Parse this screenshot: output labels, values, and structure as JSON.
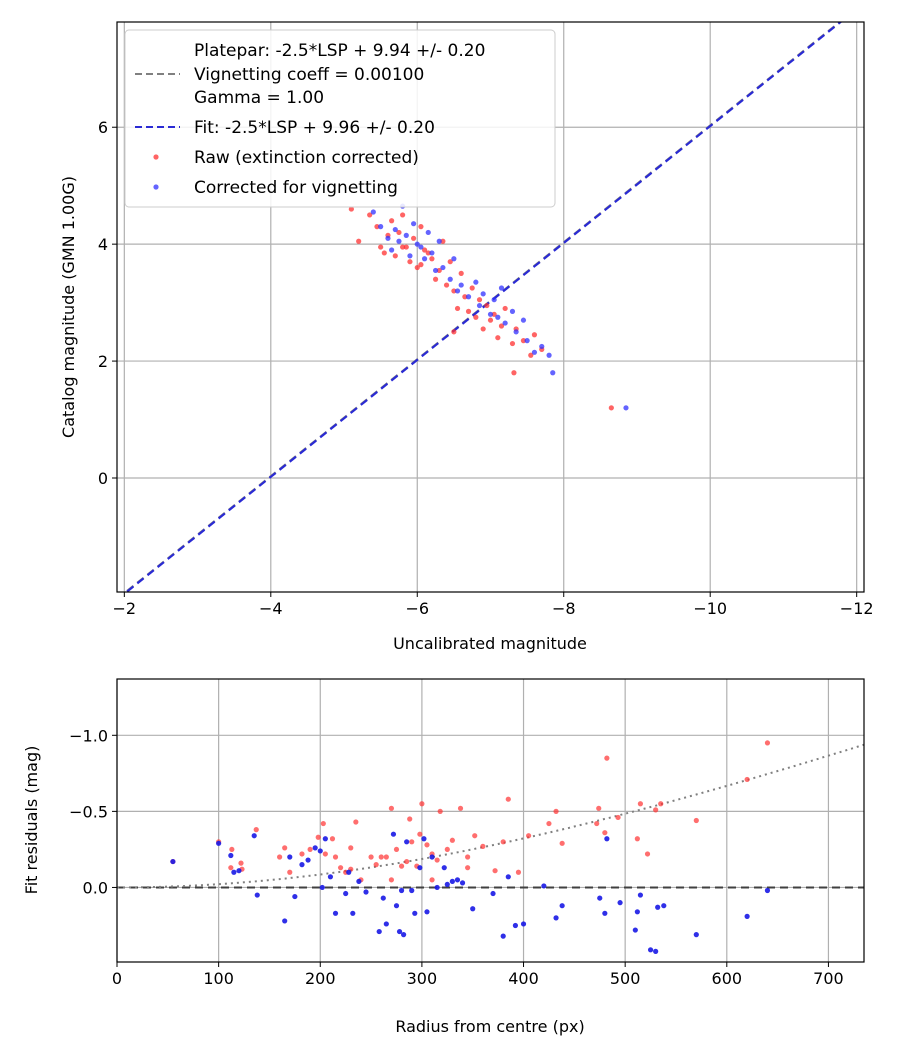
{
  "chart_data": [
    {
      "type": "scatter",
      "xlabel": "Uncalibrated magnitude",
      "ylabel": "Catalog magnitude (GMN 1.00G)",
      "xlim": [
        -1.9,
        -12.1
      ],
      "ylim": [
        7.8,
        -1.95
      ],
      "xticks": [
        -2,
        -4,
        -6,
        -8,
        -10,
        -12
      ],
      "xtick_labels": [
        "−2",
        "−4",
        "−6",
        "−8",
        "−10",
        "−12"
      ],
      "yticks": [
        0,
        2,
        4,
        6
      ],
      "ytick_labels": [
        "0",
        "2",
        "4",
        "6"
      ],
      "grid": true,
      "legend_position": "top-left",
      "legend": [
        {
          "label": "Platepar: -2.5*LSP + 9.94 +/- 0.20",
          "style": "none"
        },
        {
          "label": "Vignetting coeff = 0.00100",
          "style": "dashed",
          "color": "#808080"
        },
        {
          "label": "Gamma = 1.00",
          "style": "none"
        },
        {
          "label": "Fit: -2.5*LSP + 9.96 +/- 0.20",
          "style": "dashed",
          "color": "#2a2ad4"
        },
        {
          "label": "Raw (extinction corrected)",
          "style": "marker",
          "color": "#ff3030"
        },
        {
          "label": "Corrected for vignetting",
          "style": "marker",
          "color": "#3030ff"
        }
      ],
      "lines": [
        {
          "name": "Platepar",
          "slope": -1,
          "intercept": -3.97,
          "color": "#808080",
          "dash": "dashed"
        },
        {
          "name": "Fit",
          "slope": -1,
          "intercept": -3.98,
          "color": "#2a2ad4",
          "dash": "dashed"
        }
      ],
      "series": [
        {
          "name": "Raw (extinction corrected)",
          "color": "#ff3030",
          "points": [
            [
              -5.1,
              4.6
            ],
            [
              -5.2,
              4.05
            ],
            [
              -5.35,
              4.5
            ],
            [
              -5.45,
              4.3
            ],
            [
              -5.5,
              3.95
            ],
            [
              -5.55,
              3.85
            ],
            [
              -5.6,
              4.15
            ],
            [
              -5.65,
              4.4
            ],
            [
              -5.7,
              3.8
            ],
            [
              -5.75,
              4.2
            ],
            [
              -5.8,
              4.5
            ],
            [
              -5.85,
              3.95
            ],
            [
              -5.9,
              3.7
            ],
            [
              -5.95,
              4.1
            ],
            [
              -6.0,
              3.6
            ],
            [
              -6.05,
              4.3
            ],
            [
              -6.1,
              3.9
            ],
            [
              -6.2,
              3.75
            ],
            [
              -6.25,
              3.4
            ],
            [
              -6.3,
              3.55
            ],
            [
              -6.35,
              4.05
            ],
            [
              -6.4,
              3.3
            ],
            [
              -6.45,
              3.7
            ],
            [
              -6.5,
              3.2
            ],
            [
              -6.55,
              2.9
            ],
            [
              -6.6,
              3.5
            ],
            [
              -6.65,
              3.1
            ],
            [
              -6.7,
              2.85
            ],
            [
              -6.75,
              3.25
            ],
            [
              -6.8,
              2.75
            ],
            [
              -6.85,
              3.05
            ],
            [
              -6.9,
              2.55
            ],
            [
              -6.95,
              2.95
            ],
            [
              -7.0,
              2.7
            ],
            [
              -7.05,
              2.8
            ],
            [
              -7.1,
              2.4
            ],
            [
              -7.15,
              2.6
            ],
            [
              -7.2,
              2.9
            ],
            [
              -7.3,
              2.3
            ],
            [
              -7.35,
              2.55
            ],
            [
              -7.32,
              1.8
            ],
            [
              -7.45,
              2.35
            ],
            [
              -7.55,
              2.1
            ],
            [
              -7.6,
              2.45
            ],
            [
              -7.7,
              2.2
            ],
            [
              -8.65,
              1.2
            ],
            [
              -6.5,
              2.5
            ],
            [
              -6.05,
              3.65
            ],
            [
              -5.8,
              3.95
            ],
            [
              -6.15,
              3.85
            ]
          ]
        },
        {
          "name": "Corrected for vignetting",
          "color": "#3030ff",
          "points": [
            [
              -5.4,
              4.55
            ],
            [
              -5.5,
              4.3
            ],
            [
              -5.6,
              4.1
            ],
            [
              -5.65,
              3.9
            ],
            [
              -5.7,
              4.25
            ],
            [
              -5.75,
              4.05
            ],
            [
              -5.8,
              4.65
            ],
            [
              -5.85,
              4.15
            ],
            [
              -5.9,
              3.8
            ],
            [
              -5.95,
              4.35
            ],
            [
              -6.0,
              4.0
            ],
            [
              -6.05,
              3.95
            ],
            [
              -6.1,
              3.75
            ],
            [
              -6.15,
              4.2
            ],
            [
              -6.2,
              3.85
            ],
            [
              -6.25,
              3.55
            ],
            [
              -6.3,
              4.05
            ],
            [
              -6.35,
              3.6
            ],
            [
              -6.45,
              3.4
            ],
            [
              -6.5,
              3.75
            ],
            [
              -6.55,
              3.2
            ],
            [
              -6.6,
              3.3
            ],
            [
              -6.7,
              3.1
            ],
            [
              -6.8,
              3.35
            ],
            [
              -6.85,
              2.95
            ],
            [
              -6.9,
              3.15
            ],
            [
              -7.0,
              2.8
            ],
            [
              -7.05,
              3.05
            ],
            [
              -7.1,
              2.75
            ],
            [
              -7.15,
              3.25
            ],
            [
              -7.2,
              2.65
            ],
            [
              -7.3,
              2.85
            ],
            [
              -7.35,
              2.5
            ],
            [
              -7.45,
              2.7
            ],
            [
              -7.5,
              2.35
            ],
            [
              -7.6,
              2.15
            ],
            [
              -7.7,
              2.25
            ],
            [
              -7.8,
              2.1
            ],
            [
              -7.85,
              1.8
            ],
            [
              -8.85,
              1.2
            ]
          ]
        }
      ]
    },
    {
      "type": "scatter",
      "xlabel": "Radius from centre (px)",
      "ylabel": "Fit residuals (mag)",
      "xlim": [
        0,
        735
      ],
      "ylim": [
        -1.37,
        0.49
      ],
      "xticks": [
        0,
        100,
        200,
        300,
        400,
        500,
        600,
        700
      ],
      "xtick_labels": [
        "0",
        "100",
        "200",
        "300",
        "400",
        "500",
        "600",
        "700"
      ],
      "yticks": [
        0.0,
        -0.5,
        -1.0
      ],
      "ytick_labels": [
        "0.0",
        "−0.5",
        "−1.0"
      ],
      "grid": true,
      "lines": [
        {
          "name": "zero",
          "value": 0,
          "color": "#404040",
          "dash": "dashed"
        },
        {
          "name": "vignetting model",
          "coeff": 0.001,
          "color": "#808080",
          "dash": "dotted"
        }
      ],
      "series": [
        {
          "name": "Raw (extinction corrected)",
          "color": "#ff3030",
          "points": [
            [
              55,
              -0.17
            ],
            [
              100,
              -0.3
            ],
            [
              112,
              -0.13
            ],
            [
              113,
              -0.25
            ],
            [
              122,
              -0.16
            ],
            [
              123,
              -0.12
            ],
            [
              137,
              -0.38
            ],
            [
              165,
              -0.26
            ],
            [
              170,
              -0.1
            ],
            [
              182,
              -0.22
            ],
            [
              190,
              -0.25
            ],
            [
              198,
              -0.33
            ],
            [
              203,
              -0.42
            ],
            [
              205,
              -0.22
            ],
            [
              212,
              -0.32
            ],
            [
              215,
              -0.2
            ],
            [
              220,
              -0.13
            ],
            [
              225,
              -0.1
            ],
            [
              230,
              -0.26
            ],
            [
              235,
              -0.43
            ],
            [
              240,
              -0.05
            ],
            [
              255,
              -0.15
            ],
            [
              260,
              -0.2
            ],
            [
              265,
              -0.2
            ],
            [
              270,
              -0.52
            ],
            [
              275,
              -0.25
            ],
            [
              280,
              -0.14
            ],
            [
              285,
              -0.17
            ],
            [
              288,
              -0.45
            ],
            [
              290,
              -0.3
            ],
            [
              295,
              -0.14
            ],
            [
              298,
              -0.35
            ],
            [
              300,
              -0.55
            ],
            [
              305,
              -0.28
            ],
            [
              310,
              -0.22
            ],
            [
              315,
              -0.18
            ],
            [
              318,
              -0.5
            ],
            [
              325,
              -0.25
            ],
            [
              330,
              -0.31
            ],
            [
              338,
              -0.52
            ],
            [
              345,
              -0.2
            ],
            [
              352,
              -0.34
            ],
            [
              360,
              -0.27
            ],
            [
              372,
              -0.11
            ],
            [
              380,
              -0.3
            ],
            [
              385,
              -0.58
            ],
            [
              395,
              -0.1
            ],
            [
              405,
              -0.34
            ],
            [
              425,
              -0.42
            ],
            [
              432,
              -0.5
            ],
            [
              438,
              -0.29
            ],
            [
              472,
              -0.42
            ],
            [
              474,
              -0.52
            ],
            [
              480,
              -0.36
            ],
            [
              482,
              -0.85
            ],
            [
              493,
              -0.46
            ],
            [
              512,
              -0.32
            ],
            [
              515,
              -0.55
            ],
            [
              522,
              -0.22
            ],
            [
              530,
              -0.51
            ],
            [
              535,
              -0.55
            ],
            [
              570,
              -0.44
            ],
            [
              620,
              -0.71
            ],
            [
              640,
              -0.95
            ],
            [
              270,
              -0.05
            ],
            [
              250,
              -0.2
            ],
            [
              230,
              -0.12
            ],
            [
              160,
              -0.2
            ],
            [
              310,
              -0.05
            ],
            [
              345,
              -0.13
            ]
          ]
        },
        {
          "name": "Corrected for vignetting",
          "color": "#1818e6",
          "points": [
            [
              55,
              -0.17
            ],
            [
              100,
              -0.29
            ],
            [
              112,
              -0.21
            ],
            [
              115,
              -0.1
            ],
            [
              120,
              -0.11
            ],
            [
              135,
              -0.34
            ],
            [
              138,
              0.05
            ],
            [
              165,
              0.22
            ],
            [
              170,
              -0.2
            ],
            [
              175,
              0.06
            ],
            [
              182,
              -0.15
            ],
            [
              188,
              -0.18
            ],
            [
              195,
              -0.26
            ],
            [
              200,
              -0.24
            ],
            [
              202,
              0.0
            ],
            [
              205,
              -0.32
            ],
            [
              210,
              -0.07
            ],
            [
              215,
              0.17
            ],
            [
              225,
              0.04
            ],
            [
              228,
              -0.1
            ],
            [
              232,
              0.17
            ],
            [
              238,
              -0.04
            ],
            [
              245,
              0.03
            ],
            [
              258,
              0.29
            ],
            [
              262,
              0.07
            ],
            [
              265,
              0.24
            ],
            [
              272,
              -0.35
            ],
            [
              275,
              0.12
            ],
            [
              278,
              0.29
            ],
            [
              280,
              0.02
            ],
            [
              282,
              0.31
            ],
            [
              285,
              -0.3
            ],
            [
              290,
              0.02
            ],
            [
              293,
              0.17
            ],
            [
              298,
              -0.13
            ],
            [
              302,
              -0.32
            ],
            [
              305,
              0.16
            ],
            [
              310,
              -0.2
            ],
            [
              315,
              0.0
            ],
            [
              322,
              -0.13
            ],
            [
              325,
              -0.02
            ],
            [
              330,
              -0.04
            ],
            [
              335,
              -0.05
            ],
            [
              340,
              -0.03
            ],
            [
              350,
              0.14
            ],
            [
              370,
              0.04
            ],
            [
              380,
              0.32
            ],
            [
              385,
              -0.07
            ],
            [
              392,
              0.25
            ],
            [
              400,
              0.24
            ],
            [
              420,
              -0.01
            ],
            [
              432,
              0.2
            ],
            [
              438,
              0.12
            ],
            [
              475,
              0.07
            ],
            [
              480,
              0.17
            ],
            [
              482,
              -0.32
            ],
            [
              495,
              0.1
            ],
            [
              510,
              0.28
            ],
            [
              512,
              0.16
            ],
            [
              515,
              0.05
            ],
            [
              525,
              0.41
            ],
            [
              530,
              0.42
            ],
            [
              532,
              0.13
            ],
            [
              538,
              0.12
            ],
            [
              570,
              0.31
            ],
            [
              620,
              0.19
            ],
            [
              640,
              0.02
            ]
          ]
        }
      ]
    }
  ]
}
